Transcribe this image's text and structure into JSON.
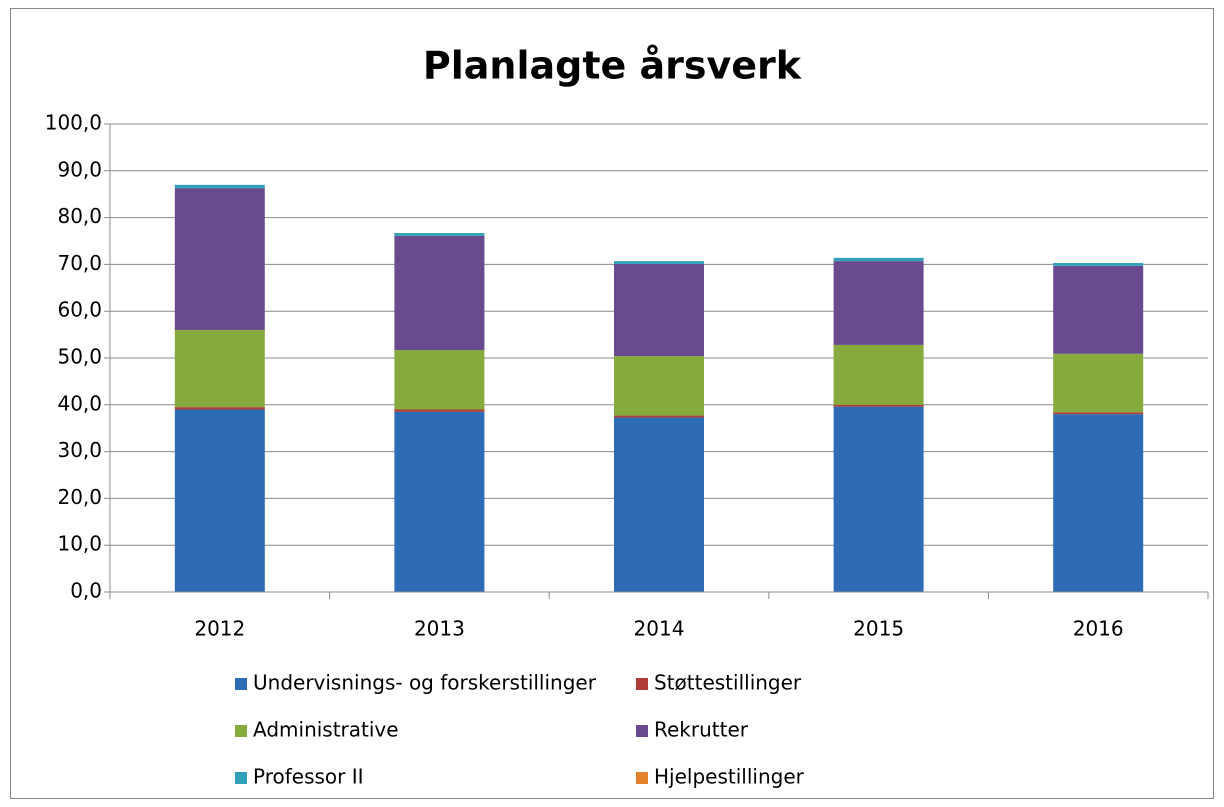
{
  "chart_data": {
    "type": "stacked_bar",
    "title": "Planlagte årsverk",
    "categories": [
      "2012",
      "2013",
      "2014",
      "2015",
      "2016"
    ],
    "series": [
      {
        "name": "Undervisnings- og forskerstillinger",
        "color": "#2e6bb5",
        "values": [
          39.0,
          38.5,
          37.3,
          39.6,
          38.0
        ]
      },
      {
        "name": "Støttestillinger",
        "color": "#b03a36",
        "values": [
          0.5,
          0.5,
          0.4,
          0.4,
          0.4
        ]
      },
      {
        "name": "Administrative",
        "color": "#86aa3c",
        "values": [
          16.5,
          12.7,
          12.7,
          12.8,
          12.5
        ]
      },
      {
        "name": "Rekrutter",
        "color": "#694a8e",
        "values": [
          30.3,
          24.4,
          19.7,
          17.9,
          18.8
        ]
      },
      {
        "name": "Professor II",
        "color": "#2fa1b8",
        "values": [
          0.7,
          0.6,
          0.6,
          0.7,
          0.6
        ]
      },
      {
        "name": "Hjelpestillinger",
        "color": "#e6822b",
        "values": [
          0,
          0,
          0,
          0,
          0
        ]
      }
    ],
    "ylim": [
      0,
      100
    ],
    "yticks": [
      {
        "value": 0,
        "label": "0,0"
      },
      {
        "value": 10,
        "label": "10,0"
      },
      {
        "value": 20,
        "label": "20,0"
      },
      {
        "value": 30,
        "label": "30,0"
      },
      {
        "value": 40,
        "label": "40,0"
      },
      {
        "value": 50,
        "label": "50,0"
      },
      {
        "value": 60,
        "label": "60,0"
      },
      {
        "value": 70,
        "label": "70,0"
      },
      {
        "value": 80,
        "label": "80,0"
      },
      {
        "value": 90,
        "label": "90,0"
      },
      {
        "value": 100,
        "label": "100,0"
      }
    ],
    "grid": true,
    "legend": "bottom"
  }
}
